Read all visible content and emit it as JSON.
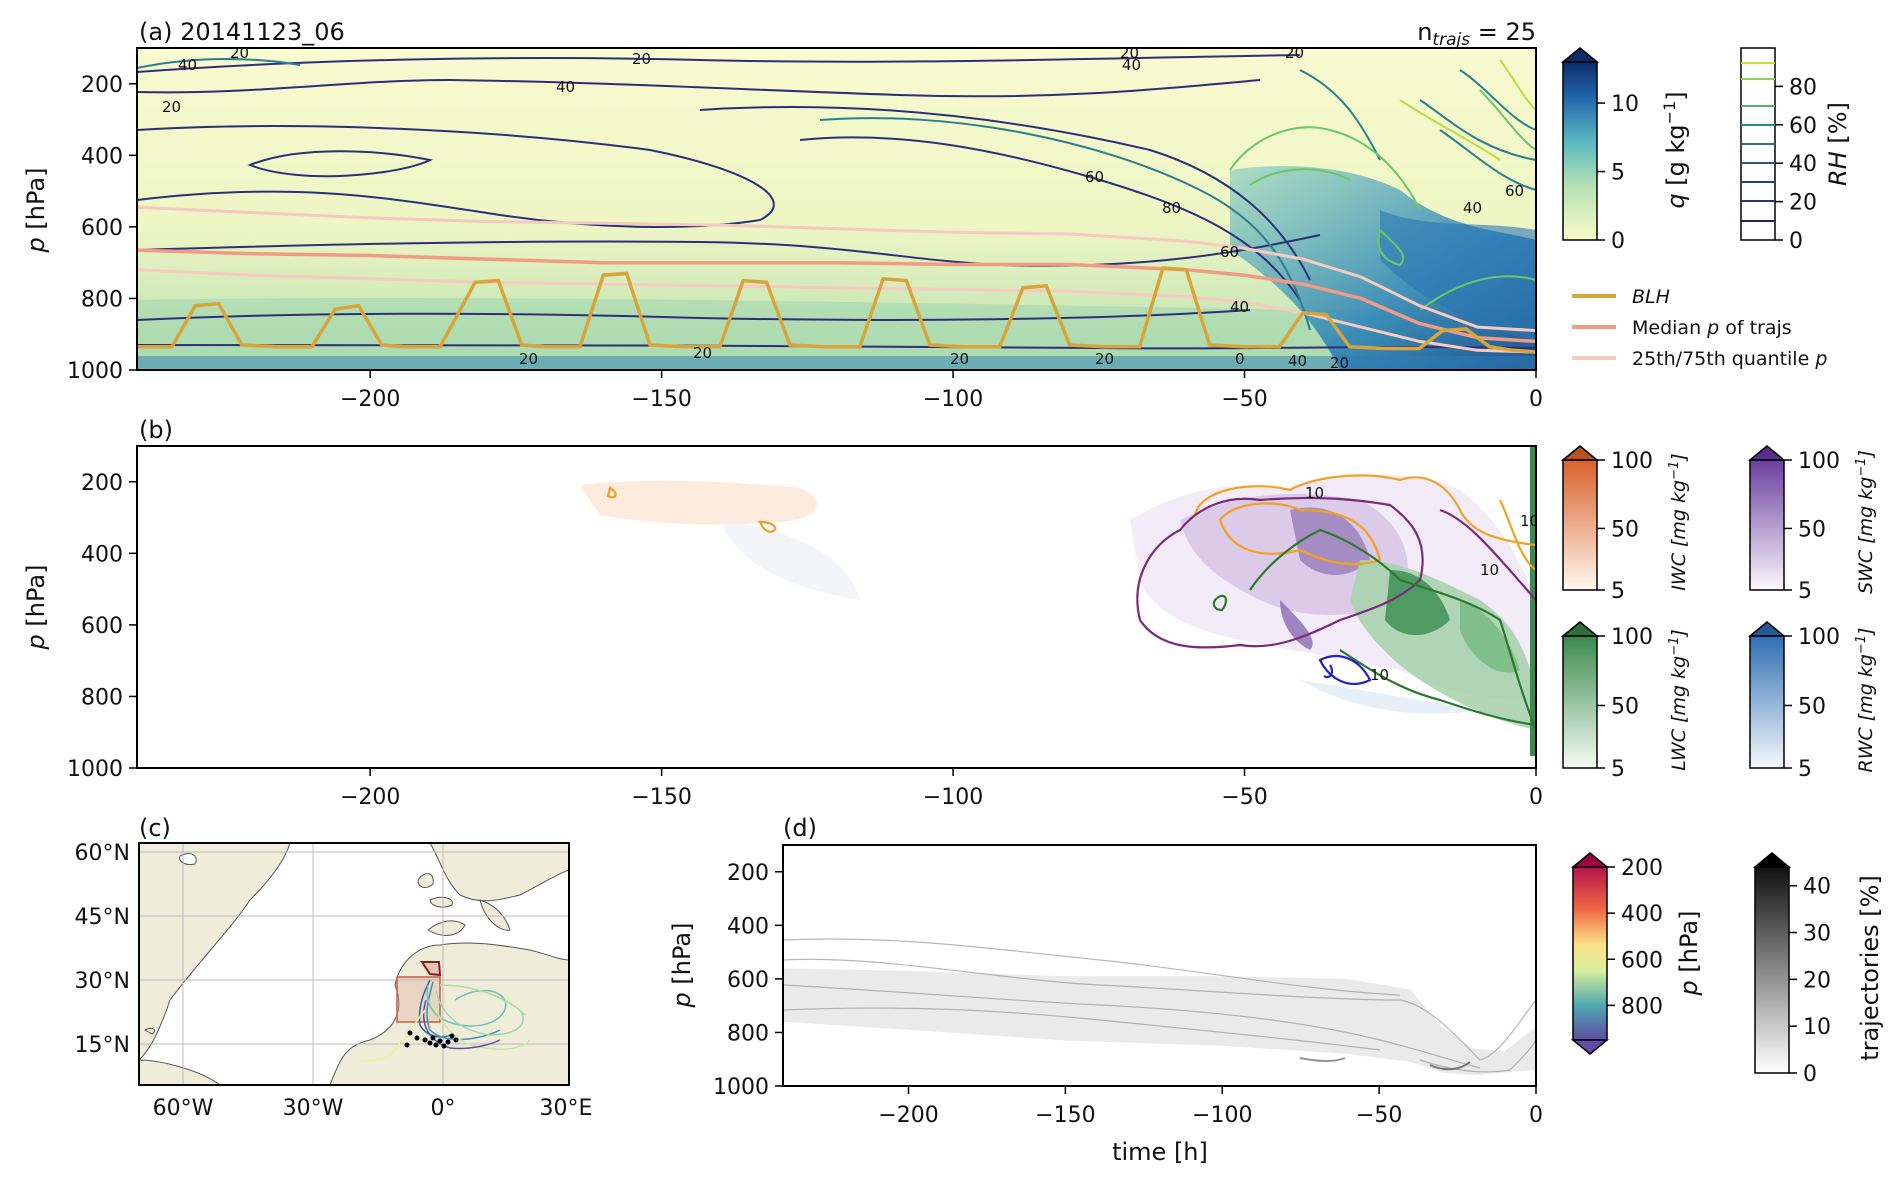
{
  "figure": {
    "panel_a": {
      "title": "(a) 20141123_06",
      "ntrajs_prefix": "n",
      "ntrajs_sub": "trajs",
      "ntrajs_value": "= 25",
      "ylabel_var": "p",
      "ylabel_unit": "[hPa]",
      "colorbar_q": {
        "label_var": "q",
        "label_unit": "[g kg",
        "label_exp": "−1",
        "label_close": "]",
        "ticks": [
          "0",
          "5",
          "10"
        ],
        "range": [
          0,
          13
        ]
      },
      "colorbar_rh": {
        "label_var": "RH",
        "label_unit": "[%]",
        "ticks": [
          "0",
          "20",
          "40",
          "60",
          "80"
        ],
        "range": [
          0,
          100
        ]
      },
      "legend": [
        {
          "label": "BLH",
          "italic": true,
          "color": "#d9a53a"
        },
        {
          "label_pre": "Median ",
          "label_var": "p",
          "label_post": " of trajs",
          "color": "#f29a84"
        },
        {
          "label_pre": "25th/75th quantile ",
          "label_var": "p",
          "label_post": "",
          "color": "#f7c9c0"
        }
      ],
      "contour_labels": [
        "20",
        "40",
        "60",
        "80",
        "0"
      ]
    },
    "panel_b": {
      "title": "(b)",
      "ylabel_var": "p",
      "ylabel_unit": "[hPa]",
      "colorbars": [
        {
          "label": "IWC [mg kg",
          "exp": "−1",
          "close": "]",
          "ticks": [
            "5",
            "50",
            "100"
          ],
          "color": "#d9622b"
        },
        {
          "label": "SWC [mg kg",
          "exp": "−1",
          "close": "]",
          "ticks": [
            "5",
            "50",
            "100"
          ],
          "color": "#7b4ea8"
        },
        {
          "label": "LWC [mg kg",
          "exp": "−1",
          "close": "]",
          "ticks": [
            "5",
            "50",
            "100"
          ],
          "color": "#3b8a4e"
        },
        {
          "label": "RWC [mg kg",
          "exp": "−1",
          "close": "]",
          "ticks": [
            "5",
            "50",
            "100"
          ],
          "color": "#2f6fb0"
        }
      ],
      "contour_labels": [
        "10",
        "10",
        "10",
        "10"
      ]
    },
    "panel_c": {
      "title": "(c)",
      "lat_ticks": [
        "60°N",
        "45°N",
        "30°N",
        "15°N"
      ],
      "lon_ticks": [
        "60°W",
        "30°W",
        "0°",
        "30°E"
      ]
    },
    "panel_d": {
      "title": "(d)",
      "ylabel_var": "p",
      "ylabel_unit": "[hPa]",
      "xlabel": "time [h]",
      "colorbar_p": {
        "label_var": "p",
        "label_unit": "[hPa]",
        "ticks": [
          "200",
          "400",
          "600",
          "800"
        ]
      },
      "colorbar_traj": {
        "label": "trajectories [%]",
        "ticks": [
          "0",
          "10",
          "20",
          "30",
          "40"
        ]
      }
    }
  },
  "chart_data": [
    {
      "panel": "a",
      "type": "heatmap",
      "x": [
        -240,
        0
      ],
      "xticks": [
        -200,
        -150,
        -100,
        -50,
        0
      ],
      "xtick_labels": [
        "−200",
        "−150",
        "−100",
        "−50",
        "0"
      ],
      "ylim": [
        1000,
        100
      ],
      "yticks": [
        200,
        400,
        600,
        800,
        1000
      ],
      "ytick_labels": [
        "200",
        "400",
        "600",
        "800",
        "1000"
      ],
      "series": [
        {
          "name": "BLH",
          "x": [
            -240,
            -234,
            -230,
            -226,
            -222,
            -216,
            -210,
            -206,
            -202,
            -198,
            -194,
            -188,
            -182,
            -178,
            -174,
            -170,
            -164,
            -160,
            -156,
            -152,
            -146,
            -140,
            -136,
            -132,
            -128,
            -122,
            -116,
            -112,
            -108,
            -104,
            -98,
            -92,
            -88,
            -84,
            -80,
            -74,
            -68,
            -64,
            -60,
            -56,
            -50,
            -44,
            -40,
            -36,
            -32,
            -26,
            -20,
            -16,
            -12,
            -8,
            -4,
            0
          ],
          "values": [
            935,
            935,
            820,
            815,
            930,
            935,
            935,
            830,
            820,
            930,
            935,
            935,
            755,
            750,
            930,
            935,
            935,
            735,
            730,
            930,
            935,
            935,
            750,
            755,
            930,
            935,
            935,
            745,
            750,
            930,
            935,
            935,
            770,
            765,
            930,
            935,
            935,
            715,
            720,
            930,
            935,
            935,
            840,
            845,
            935,
            940,
            940,
            890,
            885,
            935,
            945,
            950
          ]
        },
        {
          "name": "Median p of trajs",
          "x": [
            -240,
            -220,
            -200,
            -180,
            -160,
            -140,
            -120,
            -100,
            -80,
            -60,
            -50,
            -40,
            -30,
            -20,
            -10,
            0
          ],
          "values": [
            665,
            675,
            680,
            690,
            700,
            700,
            700,
            705,
            705,
            720,
            735,
            760,
            800,
            870,
            910,
            920
          ]
        },
        {
          "name": "25th quantile p",
          "x": [
            -240,
            -220,
            -200,
            -180,
            -160,
            -140,
            -120,
            -100,
            -80,
            -60,
            -50,
            -40,
            -30,
            -20,
            -10,
            0
          ],
          "values": [
            545,
            560,
            575,
            585,
            590,
            595,
            605,
            615,
            620,
            640,
            660,
            690,
            740,
            820,
            880,
            890
          ]
        },
        {
          "name": "75th quantile p",
          "x": [
            -240,
            -220,
            -200,
            -180,
            -160,
            -140,
            -120,
            -100,
            -80,
            -60,
            -50,
            -40,
            -30,
            -20,
            -10,
            0
          ],
          "values": [
            720,
            735,
            745,
            755,
            760,
            765,
            770,
            775,
            780,
            795,
            810,
            840,
            880,
            920,
            945,
            950
          ]
        }
      ]
    },
    {
      "panel": "b",
      "type": "heatmap",
      "x": [
        -240,
        0
      ],
      "xticks": [
        -200,
        -150,
        -100,
        -50,
        0
      ],
      "xtick_labels": [
        "−200",
        "−150",
        "−100",
        "−50",
        "0"
      ],
      "ylim": [
        1000,
        100
      ],
      "yticks": [
        200,
        400,
        600,
        800,
        1000
      ],
      "ytick_labels": [
        "200",
        "400",
        "600",
        "800",
        "1000"
      ]
    },
    {
      "panel": "d",
      "type": "heatmap",
      "x": [
        -240,
        0
      ],
      "xticks": [
        -200,
        -150,
        -100,
        -50,
        0
      ],
      "xtick_labels": [
        "−200",
        "−150",
        "−100",
        "−50",
        "0"
      ],
      "ylim": [
        1000,
        100
      ],
      "yticks": [
        200,
        400,
        600,
        800,
        1000
      ],
      "ytick_labels": [
        "200",
        "400",
        "600",
        "800",
        "1000"
      ],
      "series": [
        {
          "name": "trajectory density band upper",
          "x": [
            -240,
            -200,
            -150,
            -100,
            -60,
            -40,
            -30,
            -20,
            -10,
            0
          ],
          "values": [
            560,
            570,
            590,
            590,
            600,
            640,
            780,
            860,
            870,
            780
          ]
        },
        {
          "name": "trajectory density band lower",
          "x": [
            -240,
            -200,
            -150,
            -100,
            -60,
            -40,
            -30,
            -20,
            -10,
            0
          ],
          "values": [
            760,
            790,
            830,
            850,
            880,
            910,
            950,
            960,
            950,
            940
          ]
        }
      ]
    }
  ]
}
